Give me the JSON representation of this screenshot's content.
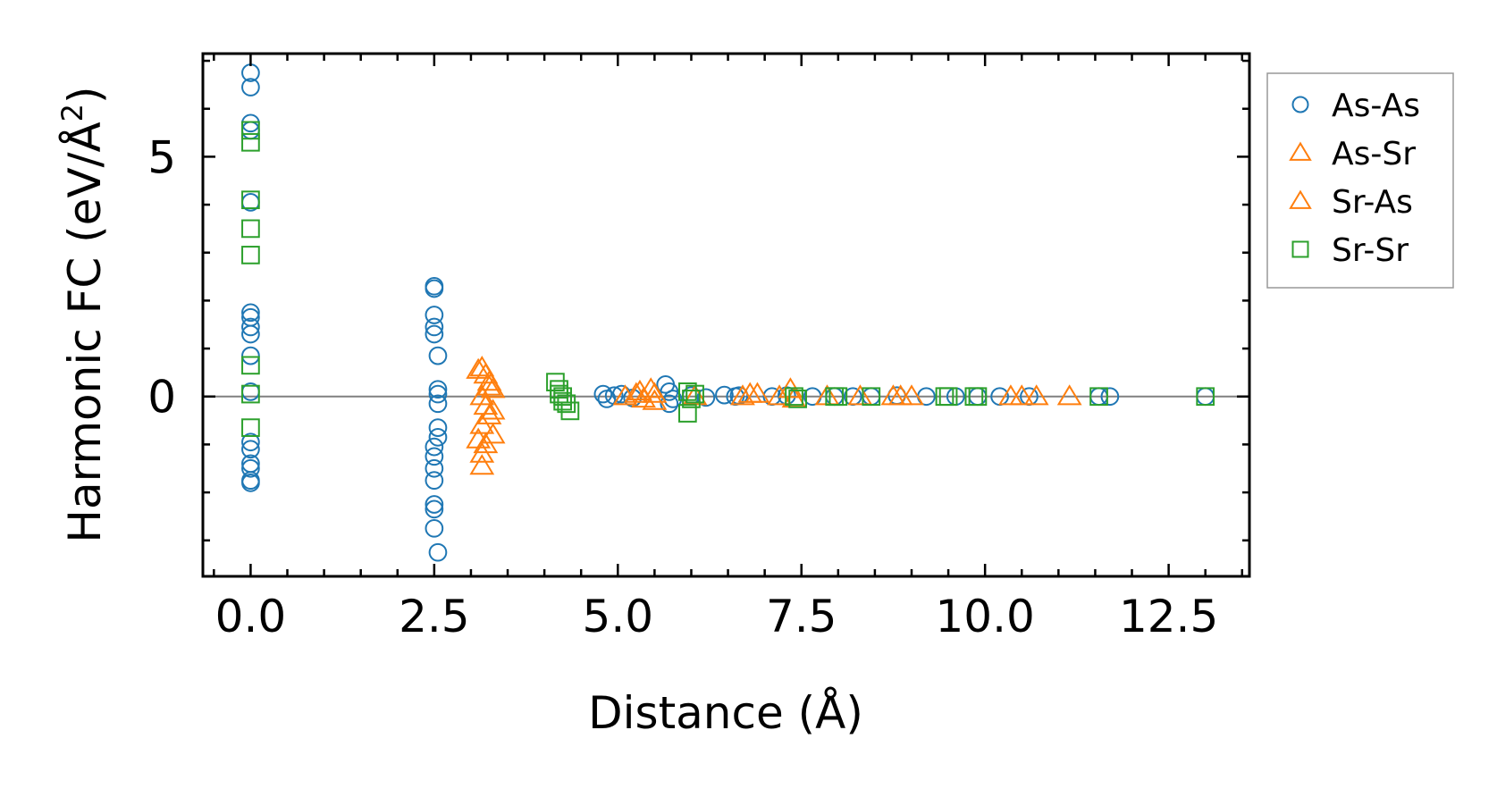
{
  "chart_data": {
    "type": "scatter",
    "title": "",
    "xlabel": "Distance (Å)",
    "ylabel": "Harmonic FC (eV/Å",
    "ylabel_sup": "2",
    "ylabel_close": ")",
    "xlim": [
      -0.65,
      13.6
    ],
    "ylim": [
      -3.75,
      7.15
    ],
    "xticks": [
      0,
      2.5,
      5,
      7.5,
      10,
      12.5
    ],
    "xtick_labels": [
      "0.0",
      "2.5",
      "5.0",
      "7.5",
      "10.0",
      "12.5"
    ],
    "yticks": [
      0,
      5
    ],
    "ytick_labels": [
      "0",
      "5"
    ],
    "x_minor_step": 0.5,
    "y_minor_step": 1,
    "zero_line": true,
    "legend_position": "outside-right-top",
    "series": [
      {
        "name": "As-As",
        "marker": "circle",
        "color": "#1f77b4",
        "points": [
          [
            0,
            6.75
          ],
          [
            0,
            6.45
          ],
          [
            0,
            5.7
          ],
          [
            0,
            5.55
          ],
          [
            0,
            4.05
          ],
          [
            0,
            1.75
          ],
          [
            0,
            1.65
          ],
          [
            0,
            1.45
          ],
          [
            0,
            1.3
          ],
          [
            0,
            0.85
          ],
          [
            0,
            0.1
          ],
          [
            0,
            -0.95
          ],
          [
            0,
            -1.1
          ],
          [
            0,
            -1.4
          ],
          [
            0,
            -1.5
          ],
          [
            0,
            -1.75
          ],
          [
            0,
            -1.8
          ],
          [
            2.5,
            2.3
          ],
          [
            2.5,
            2.25
          ],
          [
            2.5,
            1.7
          ],
          [
            2.5,
            1.45
          ],
          [
            2.5,
            1.3
          ],
          [
            2.55,
            0.85
          ],
          [
            2.55,
            0.15
          ],
          [
            2.55,
            0.05
          ],
          [
            2.55,
            -0.15
          ],
          [
            2.55,
            -0.65
          ],
          [
            2.55,
            -0.85
          ],
          [
            2.5,
            -1.05
          ],
          [
            2.5,
            -1.25
          ],
          [
            2.5,
            -1.5
          ],
          [
            2.5,
            -1.75
          ],
          [
            2.5,
            -2.25
          ],
          [
            2.5,
            -2.35
          ],
          [
            2.5,
            -2.75
          ],
          [
            2.55,
            -3.25
          ],
          [
            4.8,
            0.05
          ],
          [
            4.85,
            -0.05
          ],
          [
            4.95,
            0.02
          ],
          [
            5.05,
            0.05
          ],
          [
            5.2,
            -0.03
          ],
          [
            5.65,
            0.25
          ],
          [
            5.7,
            0.1
          ],
          [
            5.7,
            -0.15
          ],
          [
            5.75,
            -0.05
          ],
          [
            6.0,
            0.02
          ],
          [
            6.2,
            -0.02
          ],
          [
            6.45,
            0.03
          ],
          [
            6.6,
            0.0
          ],
          [
            6.65,
            0.02
          ],
          [
            7.1,
            0.0
          ],
          [
            7.3,
            0.02
          ],
          [
            7.65,
            0.0
          ],
          [
            7.95,
            0.0
          ],
          [
            8.2,
            0.0
          ],
          [
            8.45,
            0.0
          ],
          [
            8.8,
            0.02
          ],
          [
            9.2,
            0.0
          ],
          [
            9.6,
            0.0
          ],
          [
            9.9,
            0.0
          ],
          [
            10.2,
            0.0
          ],
          [
            10.6,
            0.0
          ],
          [
            11.55,
            0.0
          ],
          [
            11.7,
            0.0
          ],
          [
            13.0,
            0.0
          ]
        ]
      },
      {
        "name": "As-Sr",
        "marker": "triangle",
        "color": "#ff7f0e",
        "points": [
          [
            3.15,
            0.6
          ],
          [
            3.2,
            0.45
          ],
          [
            3.25,
            0.3
          ],
          [
            3.3,
            0.15
          ],
          [
            3.15,
            0.0
          ],
          [
            3.2,
            -0.2
          ],
          [
            3.25,
            -0.4
          ],
          [
            3.15,
            -0.6
          ],
          [
            3.3,
            -0.8
          ],
          [
            3.2,
            -1.0
          ],
          [
            3.15,
            -1.2
          ],
          [
            5.3,
            0.1
          ],
          [
            5.35,
            -0.05
          ],
          [
            5.5,
            0.05
          ],
          [
            6.05,
            0.0
          ],
          [
            6.7,
            0.0
          ],
          [
            6.8,
            0.05
          ],
          [
            7.2,
            0.0
          ],
          [
            7.4,
            -0.05
          ],
          [
            8.3,
            0.0
          ],
          [
            8.85,
            0.0
          ],
          [
            9.0,
            0.0
          ],
          [
            10.35,
            0.0
          ],
          [
            10.7,
            0.0
          ],
          [
            11.15,
            0.0
          ]
        ]
      },
      {
        "name": "Sr-As",
        "marker": "triangle",
        "color": "#ff7f0e",
        "points": [
          [
            3.1,
            0.55
          ],
          [
            3.25,
            0.2
          ],
          [
            3.3,
            -0.3
          ],
          [
            3.1,
            -0.9
          ],
          [
            3.15,
            -1.45
          ],
          [
            5.1,
            0.0
          ],
          [
            5.25,
            0.05
          ],
          [
            5.45,
            0.15
          ],
          [
            5.5,
            -0.1
          ],
          [
            6.9,
            0.05
          ],
          [
            7.35,
            0.15
          ],
          [
            7.85,
            0.0
          ],
          [
            8.75,
            0.0
          ],
          [
            10.5,
            0.0
          ]
        ]
      },
      {
        "name": "Sr-Sr",
        "marker": "square",
        "color": "#2ca02c",
        "points": [
          [
            0,
            5.55
          ],
          [
            0,
            5.3
          ],
          [
            0,
            4.1
          ],
          [
            0,
            3.5
          ],
          [
            0,
            2.95
          ],
          [
            0,
            0.65
          ],
          [
            0,
            0.05
          ],
          [
            0,
            -0.65
          ],
          [
            4.15,
            0.3
          ],
          [
            4.2,
            0.15
          ],
          [
            4.25,
            0.0
          ],
          [
            4.3,
            -0.15
          ],
          [
            4.35,
            -0.3
          ],
          [
            4.2,
            0.05
          ],
          [
            4.25,
            -0.1
          ],
          [
            5.95,
            0.1
          ],
          [
            6.0,
            -0.05
          ],
          [
            5.95,
            -0.35
          ],
          [
            6.05,
            0.05
          ],
          [
            7.4,
            0.0
          ],
          [
            7.45,
            -0.05
          ],
          [
            7.95,
            0.0
          ],
          [
            8.0,
            0.0
          ],
          [
            8.45,
            0.0
          ],
          [
            9.45,
            0.0
          ],
          [
            9.5,
            0.0
          ],
          [
            9.85,
            0.0
          ],
          [
            9.9,
            0.0
          ],
          [
            11.55,
            0.0
          ],
          [
            13.0,
            0.0
          ]
        ]
      }
    ]
  }
}
